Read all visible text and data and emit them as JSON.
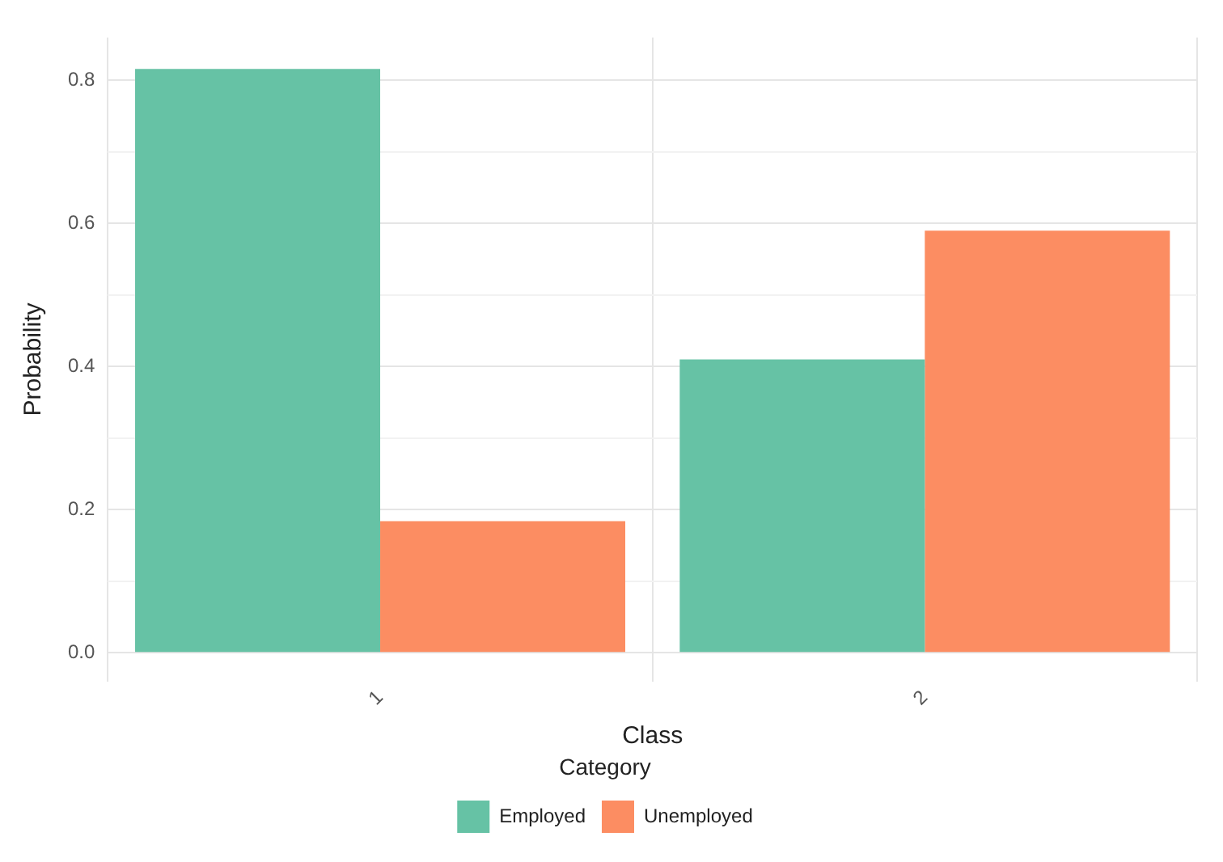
{
  "chart_data": {
    "type": "bar",
    "xlabel": "Class",
    "ylabel": "Probability",
    "legend_title": "Category",
    "categories": [
      "1",
      "2"
    ],
    "series": [
      {
        "name": "Employed",
        "color": "#66c2a5",
        "values": [
          0.816,
          0.41
        ]
      },
      {
        "name": "Unemployed",
        "color": "#fc8d62",
        "values": [
          0.184,
          0.59
        ]
      }
    ],
    "ylim": [
      -0.04,
      0.86
    ],
    "yticks": [
      {
        "value": 0,
        "label": "0.0"
      },
      {
        "value": 0.1,
        "label": null
      },
      {
        "value": 0.2,
        "label": "0.2"
      },
      {
        "value": 0.3,
        "label": null
      },
      {
        "value": 0.4,
        "label": "0.4"
      },
      {
        "value": 0.5,
        "label": null
      },
      {
        "value": 0.6,
        "label": "0.6"
      },
      {
        "value": 0.7,
        "label": null
      },
      {
        "value": 0.8,
        "label": "0.8"
      }
    ],
    "grid": true,
    "legend": "bottom"
  }
}
